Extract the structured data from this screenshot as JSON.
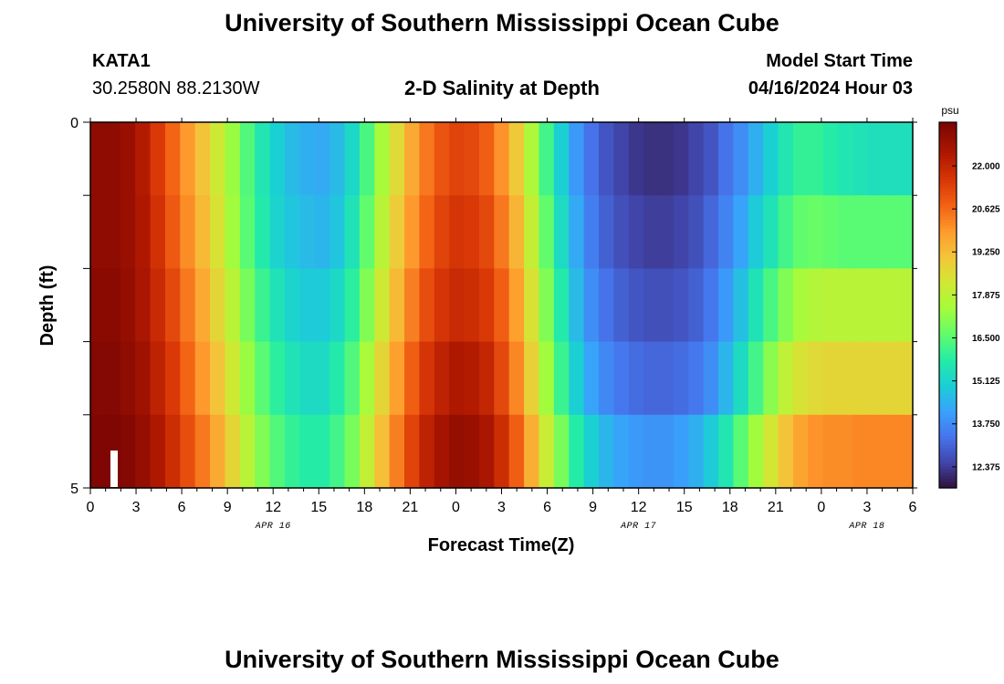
{
  "header": {
    "title": "University of Southern Mississippi Ocean Cube",
    "station_id": "KATA1",
    "station_coords": "30.2580N  88.2130W",
    "subtitle": "2-D Salinity at Depth",
    "model_start_label": "Model Start Time",
    "model_start_value": "04/16/2024 Hour 03"
  },
  "footer": {
    "title": "University of Southern Mississippi Ocean Cube"
  },
  "chart_data": {
    "type": "heatmap",
    "xlabel": "Forecast Time(Z)",
    "ylabel": "Depth (ft)",
    "x_start_hour": 0,
    "x_end_hour": 54,
    "x_step_hours": 1,
    "x_tick_labels": [
      "0",
      "3",
      "6",
      "9",
      "12",
      "15",
      "18",
      "21",
      "0",
      "3",
      "6",
      "9",
      "12",
      "15",
      "18",
      "21",
      "0",
      "3",
      "6"
    ],
    "date_labels": [
      {
        "label": "APR 16",
        "hour": 12
      },
      {
        "label": "APR 17",
        "hour": 36
      },
      {
        "label": "APR 18",
        "hour": 51
      }
    ],
    "y_top_label": "0",
    "y_bottom_label": "5",
    "y_range": [
      0,
      5
    ],
    "depth_layers": 5,
    "colorbar": {
      "unit": "psu",
      "min": 11.7,
      "max": 23.4,
      "tick_labels": [
        "22.000",
        "20.625",
        "19.250",
        "17.875",
        "16.500",
        "15.125",
        "13.750",
        "12.375"
      ],
      "tick_values": [
        22.0,
        20.625,
        19.25,
        17.875,
        16.5,
        15.125,
        13.75,
        12.375
      ],
      "colormap": "turbo"
    },
    "rows": [
      {
        "depth": "0-1",
        "values": [
          23.0,
          23.0,
          22.8,
          22.3,
          21.5,
          20.7,
          19.9,
          19.1,
          18.2,
          17.3,
          16.4,
          15.6,
          15.0,
          14.6,
          14.4,
          14.3,
          14.6,
          15.2,
          16.3,
          17.5,
          18.6,
          19.6,
          20.4,
          21.0,
          21.3,
          21.2,
          20.8,
          20.0,
          19.0,
          17.6,
          16.2,
          15.0,
          14.0,
          13.3,
          12.8,
          12.5,
          12.3,
          12.2,
          12.2,
          12.3,
          12.5,
          12.8,
          13.3,
          13.8,
          14.4,
          15.0,
          15.6,
          16.0,
          16.0,
          15.8,
          15.6,
          15.5,
          15.4,
          15.4,
          15.4
        ]
      },
      {
        "depth": "1-2",
        "values": [
          23.0,
          23.0,
          22.8,
          22.4,
          21.7,
          20.9,
          20.1,
          19.3,
          18.4,
          17.4,
          16.5,
          15.7,
          15.1,
          14.8,
          14.6,
          14.5,
          14.8,
          15.5,
          16.6,
          17.8,
          18.9,
          19.9,
          20.7,
          21.3,
          21.6,
          21.5,
          21.2,
          20.4,
          19.4,
          18.0,
          16.6,
          15.3,
          14.3,
          13.5,
          13.0,
          12.7,
          12.5,
          12.4,
          12.4,
          12.5,
          12.7,
          13.1,
          13.6,
          14.2,
          14.9,
          15.5,
          16.2,
          16.6,
          16.7,
          16.6,
          16.5,
          16.5,
          16.5,
          16.5,
          16.5
        ]
      },
      {
        "depth": "2-3",
        "values": [
          23.1,
          23.1,
          22.9,
          22.5,
          21.9,
          21.2,
          20.4,
          19.6,
          18.7,
          17.8,
          16.9,
          16.1,
          15.5,
          15.1,
          14.9,
          14.9,
          15.2,
          15.9,
          17.0,
          18.2,
          19.3,
          20.3,
          21.1,
          21.6,
          21.9,
          21.8,
          21.5,
          20.8,
          19.8,
          18.4,
          17.0,
          15.7,
          14.6,
          13.8,
          13.3,
          13.0,
          12.8,
          12.7,
          12.7,
          12.8,
          13.0,
          13.4,
          14.0,
          14.7,
          15.5,
          16.3,
          17.0,
          17.5,
          17.7,
          17.8,
          17.8,
          17.8,
          17.8,
          17.8,
          17.8
        ]
      },
      {
        "depth": "3-4",
        "values": [
          23.2,
          23.2,
          23.0,
          22.7,
          22.1,
          21.5,
          20.7,
          19.9,
          19.1,
          18.2,
          17.3,
          16.5,
          15.9,
          15.5,
          15.3,
          15.3,
          15.7,
          16.4,
          17.5,
          18.7,
          19.8,
          20.8,
          21.6,
          22.1,
          22.4,
          22.3,
          22.0,
          21.2,
          20.2,
          18.8,
          17.4,
          16.1,
          15.0,
          14.2,
          13.7,
          13.4,
          13.2,
          13.1,
          13.1,
          13.2,
          13.4,
          13.8,
          14.5,
          15.3,
          16.2,
          17.1,
          17.9,
          18.4,
          18.6,
          18.7,
          18.7,
          18.7,
          18.7,
          18.7,
          18.7
        ]
      },
      {
        "depth": "4-5",
        "values": [
          23.3,
          23.3,
          23.2,
          22.9,
          22.4,
          21.8,
          21.1,
          20.4,
          19.6,
          18.7,
          17.8,
          17.0,
          16.4,
          16.0,
          15.8,
          15.8,
          16.2,
          16.9,
          18.0,
          19.2,
          20.3,
          21.3,
          22.1,
          22.6,
          22.9,
          22.8,
          22.5,
          21.8,
          20.8,
          19.5,
          18.1,
          16.9,
          15.8,
          15.0,
          14.5,
          14.2,
          14.0,
          13.9,
          13.9,
          14.1,
          14.4,
          14.9,
          15.6,
          16.5,
          17.4,
          18.3,
          19.1,
          19.7,
          20.0,
          20.1,
          20.1,
          20.2,
          20.2,
          20.2,
          20.2
        ]
      }
    ]
  }
}
